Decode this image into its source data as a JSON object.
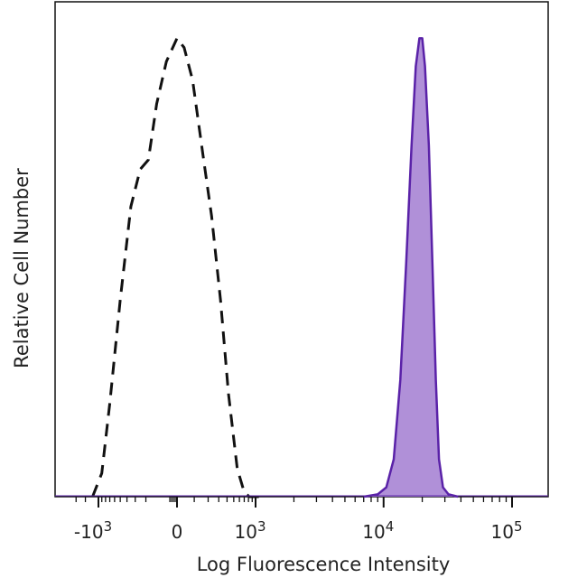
{
  "chart_data": {
    "type": "area",
    "title": "",
    "xlabel": "Log Fluorescence Intensity",
    "ylabel": "Relative Cell Number",
    "xscale": "biexponential",
    "xlim": [
      -2000,
      150000
    ],
    "ylim": [
      0,
      1.0
    ],
    "grid": false,
    "legend": "none",
    "x_ticks": [
      {
        "value": -1000,
        "base": "-10",
        "exp": "3"
      },
      {
        "value": 0,
        "base": "0",
        "exp": ""
      },
      {
        "value": 1000,
        "base": "10",
        "exp": "3"
      },
      {
        "value": 10000,
        "base": "10",
        "exp": "4"
      },
      {
        "value": 100000,
        "base": "10",
        "exp": "5"
      }
    ],
    "series": [
      {
        "style": "dashed",
        "color": "#111111",
        "fill": "none",
        "x": [
          -1200,
          -900,
          -700,
          -500,
          -350,
          -250,
          -180,
          -120,
          -60,
          0,
          40,
          90,
          160,
          230,
          320,
          420,
          560,
          700,
          820,
          950,
          1100
        ],
        "y": [
          0.0,
          0.05,
          0.2,
          0.42,
          0.62,
          0.7,
          0.72,
          0.84,
          0.93,
          0.98,
          0.96,
          0.89,
          0.73,
          0.6,
          0.42,
          0.22,
          0.06,
          0.01,
          0.0,
          0.0,
          0.0
        ]
      },
      {
        "style": "solid",
        "color": "#5a22a8",
        "fill": "#b090d8",
        "x": [
          7000,
          9000,
          10500,
          12000,
          13500,
          15000,
          16500,
          17800,
          19000,
          20000,
          21000,
          22500,
          24000,
          25500,
          27000,
          29000,
          32000,
          38000
        ],
        "y": [
          0.0,
          0.005,
          0.02,
          0.08,
          0.25,
          0.5,
          0.75,
          0.92,
          0.98,
          0.98,
          0.92,
          0.75,
          0.5,
          0.25,
          0.08,
          0.02,
          0.005,
          0.0
        ]
      }
    ]
  }
}
